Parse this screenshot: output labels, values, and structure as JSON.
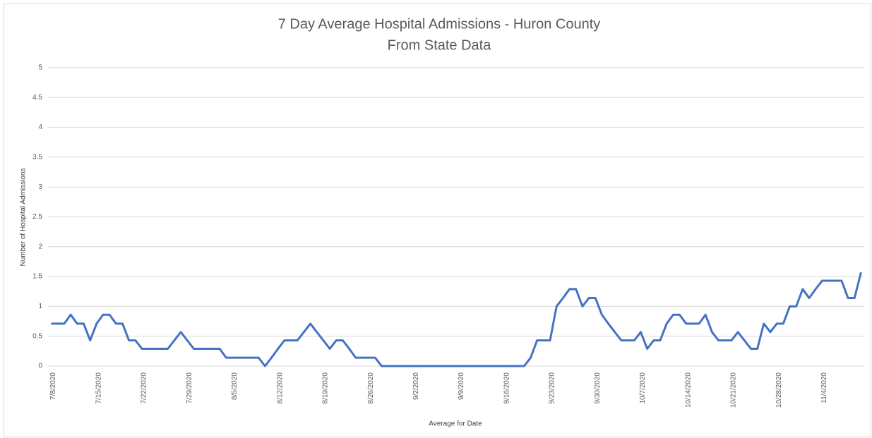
{
  "chart_data": {
    "type": "line",
    "title": "7 Day Average Hospital Admissions - Huron County",
    "subtitle": "From State Data",
    "y_label": "Number of Hospital Admissions",
    "x_label": "Average for Date",
    "color": "#4472c4",
    "grid": true,
    "categories": [
      "7/8/2020",
      null,
      null,
      null,
      null,
      null,
      null,
      "7/15/2020",
      null,
      null,
      null,
      null,
      null,
      null,
      "7/22/2020",
      null,
      null,
      null,
      null,
      null,
      null,
      "7/29/2020",
      null,
      null,
      null,
      null,
      null,
      null,
      "8/5/2020",
      null,
      null,
      null,
      null,
      null,
      null,
      "8/12/2020",
      null,
      null,
      null,
      null,
      null,
      null,
      "8/19/2020",
      null,
      null,
      null,
      null,
      null,
      null,
      "8/26/2020",
      null,
      null,
      null,
      null,
      null,
      null,
      "9/2/2020",
      null,
      null,
      null,
      null,
      null,
      null,
      "9/9/2020",
      null,
      null,
      null,
      null,
      null,
      null,
      "9/16/2020",
      null,
      null,
      null,
      null,
      null,
      null,
      "9/23/2020",
      null,
      null,
      null,
      null,
      null,
      null,
      "9/30/2020",
      null,
      null,
      null,
      null,
      null,
      null,
      "10/7/2020",
      null,
      null,
      null,
      null,
      null,
      null,
      "10/14/2020",
      null,
      null,
      null,
      null,
      null,
      null,
      "10/21/2020",
      null,
      null,
      null,
      null,
      null,
      null,
      "10/28/2020",
      null,
      null,
      null,
      null,
      null,
      null,
      "11/4/2020",
      null,
      null,
      null,
      null,
      null,
      null
    ],
    "values": [
      0.71,
      0.71,
      0.71,
      0.86,
      0.71,
      0.71,
      0.43,
      0.71,
      0.86,
      0.86,
      0.71,
      0.71,
      0.43,
      0.43,
      0.29,
      0.29,
      0.29,
      0.29,
      0.29,
      0.43,
      0.57,
      0.43,
      0.29,
      0.29,
      0.29,
      0.29,
      0.29,
      0.14,
      0.14,
      0.14,
      0.14,
      0.14,
      0.14,
      0,
      0.14,
      0.29,
      0.43,
      0.43,
      0.43,
      0.57,
      0.71,
      0.57,
      0.43,
      0.29,
      0.43,
      0.43,
      0.29,
      0.14,
      0.14,
      0.14,
      0.14,
      0,
      0,
      0,
      0,
      0,
      0,
      0,
      0,
      0,
      0,
      0,
      0,
      0,
      0,
      0,
      0,
      0,
      0,
      0,
      0,
      0,
      0,
      0,
      0.14,
      0.43,
      0.43,
      0.43,
      1,
      1.14,
      1.29,
      1.29,
      1,
      1.14,
      1.14,
      0.86,
      0.71,
      0.57,
      0.43,
      0.43,
      0.43,
      0.57,
      0.29,
      0.43,
      0.43,
      0.71,
      0.86,
      0.86,
      0.71,
      0.71,
      0.71,
      0.86,
      0.57,
      0.43,
      0.43,
      0.43,
      0.57,
      0.43,
      0.29,
      0.29,
      0.71,
      0.57,
      0.71,
      0.71,
      1,
      1,
      1.29,
      1.14,
      1.29,
      1.43,
      1.43,
      1.43,
      1.43,
      1.14,
      1.14,
      1.57
    ],
    "ylim": [
      0,
      5
    ],
    "yticks": [
      0,
      0.5,
      1,
      1.5,
      2,
      2.5,
      3,
      3.5,
      4,
      4.5,
      5
    ]
  }
}
